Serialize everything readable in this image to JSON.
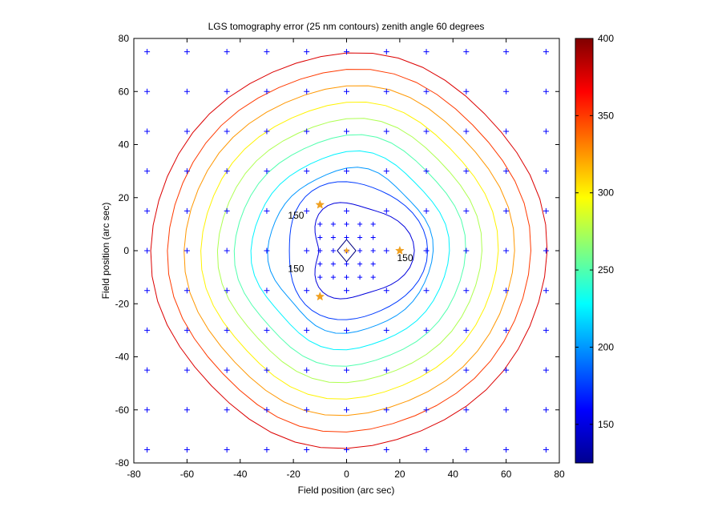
{
  "chart_data": {
    "type": "contour",
    "title": "LGS tomography error (25 nm contours) zenith angle 60 degrees",
    "xlabel": "Field position (arc sec)",
    "ylabel": "Field position (arc sec)",
    "xlim": [
      -80,
      80
    ],
    "ylim": [
      -80,
      80
    ],
    "xticks": [
      -80,
      -60,
      -40,
      -20,
      0,
      20,
      40,
      60,
      80
    ],
    "yticks": [
      -80,
      -60,
      -40,
      -20,
      0,
      20,
      40,
      60,
      80
    ],
    "contour_interval_nm": 25,
    "contour_levels": [
      150,
      175,
      200,
      225,
      250,
      275,
      300,
      325,
      350,
      375
    ],
    "contour_labels": [
      {
        "text": "150",
        "x": -19,
        "y": 13
      },
      {
        "text": "150",
        "x": -19,
        "y": -7
      },
      {
        "text": "150",
        "x": 22,
        "y": -3
      }
    ],
    "colorbar": {
      "range": [
        125,
        400
      ],
      "ticks": [
        150,
        200,
        250,
        300,
        350,
        400
      ],
      "colormap": "jet"
    },
    "grid": false,
    "guide_stars": [
      {
        "x": -10,
        "y": 17.3
      },
      {
        "x": -10,
        "y": -17.3
      },
      {
        "x": 20,
        "y": 0
      }
    ],
    "star_color": "#f0a020",
    "coarse_eval_points": [
      -75,
      -60,
      -45,
      -30,
      -15,
      0,
      15,
      30,
      45,
      60,
      75
    ],
    "fine_eval_points": [
      -10,
      -5,
      0,
      5,
      10
    ],
    "marker_color": "#0000ff"
  }
}
